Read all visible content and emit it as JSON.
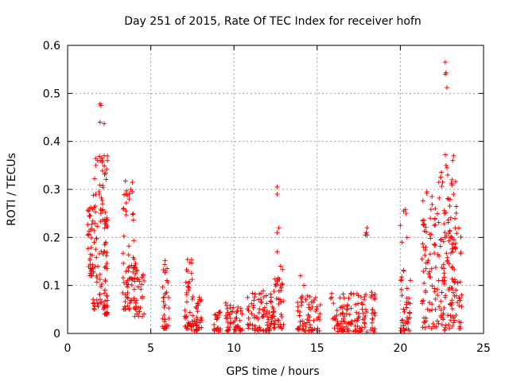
{
  "chart_data": {
    "type": "scatter",
    "title": "Day 251 of 2015, Rate Of TEC Index for receiver hofn",
    "xlabel": "GPS time / hours",
    "ylabel": "ROTI / TECUs",
    "xlim": [
      0,
      25
    ],
    "ylim": [
      0,
      0.6
    ],
    "xticks": [
      0,
      5,
      10,
      15,
      20,
      25
    ],
    "yticks": [
      0,
      0.1,
      0.2,
      0.3,
      0.4,
      0.5,
      0.6
    ],
    "grid": true,
    "marker": "+",
    "color": "#ff0000",
    "clusters": [
      {
        "x": [
          1.2,
          1.5
        ],
        "y": [
          0.12,
          0.26
        ]
      },
      {
        "x": [
          1.5,
          2.2
        ],
        "y": [
          0.05,
          0.37
        ]
      },
      {
        "x": [
          2.2,
          2.4
        ],
        "y": [
          0.04,
          0.37
        ]
      },
      {
        "x": [
          3.3,
          4.0
        ],
        "y": [
          0.05,
          0.32
        ]
      },
      {
        "x": [
          4.0,
          4.6
        ],
        "y": [
          0.035,
          0.16
        ]
      },
      {
        "x": [
          5.7,
          6.1
        ],
        "y": [
          0.01,
          0.155
        ]
      },
      {
        "x": [
          7.0,
          7.5
        ],
        "y": [
          0.005,
          0.16
        ]
      },
      {
        "x": [
          7.5,
          8.1
        ],
        "y": [
          0.005,
          0.085
        ]
      },
      {
        "x": [
          8.8,
          9.2
        ],
        "y": [
          0.005,
          0.045
        ]
      },
      {
        "x": [
          9.5,
          10.0
        ],
        "y": [
          0.005,
          0.065
        ]
      },
      {
        "x": [
          10.0,
          10.5
        ],
        "y": [
          0.005,
          0.055
        ]
      },
      {
        "x": [
          10.8,
          12.0
        ],
        "y": [
          0.005,
          0.09
        ]
      },
      {
        "x": [
          12.0,
          12.4
        ],
        "y": [
          0.005,
          0.085
        ]
      },
      {
        "x": [
          12.4,
          13.0
        ],
        "y": [
          0.01,
          0.14
        ]
      },
      {
        "x": [
          13.8,
          15.2
        ],
        "y": [
          0.005,
          0.08
        ]
      },
      {
        "x": [
          15.8,
          17.0
        ],
        "y": [
          0.003,
          0.085
        ]
      },
      {
        "x": [
          17.0,
          18.5
        ],
        "y": [
          0.003,
          0.095
        ]
      },
      {
        "x": [
          20.0,
          20.6
        ],
        "y": [
          0.005,
          0.14
        ]
      },
      {
        "x": [
          21.3,
          22.3
        ],
        "y": [
          0.005,
          0.3
        ]
      },
      {
        "x": [
          22.3,
          23.0
        ],
        "y": [
          0.005,
          0.35
        ]
      },
      {
        "x": [
          23.0,
          23.7
        ],
        "y": [
          0.01,
          0.32
        ]
      }
    ],
    "points": [
      {
        "x": 1.3,
        "y": 0.26
      },
      {
        "x": 1.4,
        "y": 0.262
      },
      {
        "x": 1.35,
        "y": 0.125
      },
      {
        "x": 1.45,
        "y": 0.12
      },
      {
        "x": 1.95,
        "y": 0.478
      },
      {
        "x": 2.0,
        "y": 0.475
      },
      {
        "x": 1.95,
        "y": 0.44
      },
      {
        "x": 2.2,
        "y": 0.437
      },
      {
        "x": 2.1,
        "y": 0.36
      },
      {
        "x": 2.05,
        "y": 0.365
      },
      {
        "x": 2.2,
        "y": 0.37
      },
      {
        "x": 1.7,
        "y": 0.35
      },
      {
        "x": 1.7,
        "y": 0.29
      },
      {
        "x": 2.1,
        "y": 0.27
      },
      {
        "x": 2.0,
        "y": 0.25
      },
      {
        "x": 1.6,
        "y": 0.19
      },
      {
        "x": 3.5,
        "y": 0.29
      },
      {
        "x": 3.8,
        "y": 0.3
      },
      {
        "x": 3.9,
        "y": 0.315
      },
      {
        "x": 3.7,
        "y": 0.28
      },
      {
        "x": 12.6,
        "y": 0.305
      },
      {
        "x": 12.6,
        "y": 0.29
      },
      {
        "x": 12.7,
        "y": 0.22
      },
      {
        "x": 12.6,
        "y": 0.21
      },
      {
        "x": 12.6,
        "y": 0.17
      },
      {
        "x": 12.8,
        "y": 0.14
      },
      {
        "x": 14.0,
        "y": 0.12
      },
      {
        "x": 14.2,
        "y": 0.1
      },
      {
        "x": 17.9,
        "y": 0.205
      },
      {
        "x": 17.95,
        "y": 0.21
      },
      {
        "x": 18.0,
        "y": 0.22
      },
      {
        "x": 18.0,
        "y": 0.205
      },
      {
        "x": 20.2,
        "y": 0.255
      },
      {
        "x": 20.3,
        "y": 0.258
      },
      {
        "x": 20.35,
        "y": 0.25
      },
      {
        "x": 20.0,
        "y": 0.225
      },
      {
        "x": 20.1,
        "y": 0.19
      },
      {
        "x": 20.4,
        "y": 0.2
      },
      {
        "x": 20.2,
        "y": 0.13
      },
      {
        "x": 21.6,
        "y": 0.295
      },
      {
        "x": 21.9,
        "y": 0.285
      },
      {
        "x": 22.1,
        "y": 0.26
      },
      {
        "x": 21.8,
        "y": 0.24
      },
      {
        "x": 22.7,
        "y": 0.565
      },
      {
        "x": 22.7,
        "y": 0.54
      },
      {
        "x": 22.75,
        "y": 0.543
      },
      {
        "x": 22.8,
        "y": 0.512
      },
      {
        "x": 22.7,
        "y": 0.372
      },
      {
        "x": 22.75,
        "y": 0.35
      },
      {
        "x": 22.8,
        "y": 0.345
      },
      {
        "x": 22.85,
        "y": 0.33
      },
      {
        "x": 23.2,
        "y": 0.37
      },
      {
        "x": 23.15,
        "y": 0.36
      },
      {
        "x": 23.1,
        "y": 0.32
      },
      {
        "x": 23.2,
        "y": 0.29
      },
      {
        "x": 22.9,
        "y": 0.28
      },
      {
        "x": 23.0,
        "y": 0.2
      },
      {
        "x": 23.3,
        "y": 0.22
      }
    ]
  }
}
